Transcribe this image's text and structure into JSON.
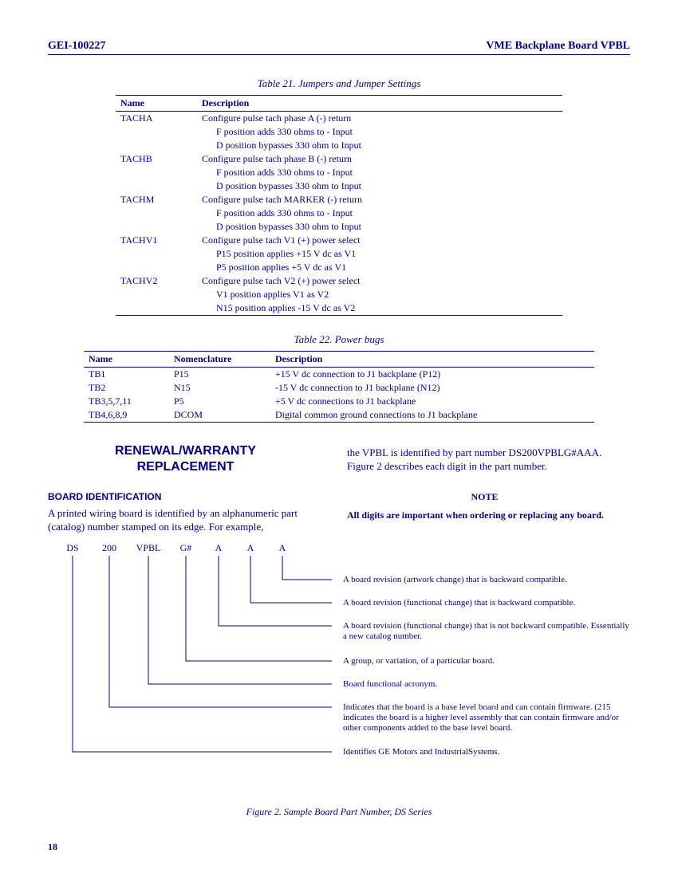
{
  "header": {
    "left": "GEI-100227",
    "right": "VME Backplane Board VPBL"
  },
  "table21": {
    "caption": "Table 21. Jumpers and Jumper Settings",
    "cols": [
      "Name",
      "Description"
    ],
    "rows": [
      {
        "name": "TACHA",
        "lines": [
          "Configure pulse tach phase A (-) return",
          "F position adds 330 ohms to - Input",
          "D position bypasses 330 ohm to Input"
        ]
      },
      {
        "name": "TACHB",
        "lines": [
          "Configure pulse tach phase B (-) return",
          "F position adds 330 ohms to - Input",
          "D position bypasses 330 ohm to Input"
        ]
      },
      {
        "name": "TACHM",
        "lines": [
          "Configure pulse tach MARKER (-) return",
          "F position adds 330 ohms to - Input",
          "D position bypasses 330 ohm to Input"
        ]
      },
      {
        "name": "TACHV1",
        "lines": [
          "Configure pulse tach V1 (+) power select",
          "P15 position applies +15 V dc as V1",
          "P5 position applies +5 V dc as V1"
        ]
      },
      {
        "name": "TACHV2",
        "lines": [
          "Configure pulse tach V2 (+) power select",
          "V1 position applies V1 as V2",
          "N15 position applies -15 V dc as V2"
        ]
      }
    ]
  },
  "table22": {
    "caption": "Table 22. Power bugs",
    "cols": [
      "Name",
      "Nomenclature",
      "Description"
    ],
    "rows": [
      [
        "TB1",
        "P15",
        "+15 V dc connection to J1 backplane (P12)"
      ],
      [
        "TB2",
        "N15",
        "-15 V dc connection to J1 backplane (N12)"
      ],
      [
        "TB3,5,7,11",
        "P5",
        "+5 V dc connections to J1 backplane"
      ],
      [
        "TB4,6,8,9",
        "DCOM",
        "Digital common ground connections to J1 backplane"
      ]
    ]
  },
  "section": {
    "h1a": "RENEWAL/WARRANTY",
    "h1b": "REPLACEMENT",
    "h2": "BOARD IDENTIFICATION",
    "p_left": "A printed wiring board is identified by an alphanumeric part (catalog) number stamped on its edge. For example,",
    "p_right": "the VPBL is identified by part number DS200VPBLG#AAA. Figure 2 describes each digit in the part number.",
    "notehdr": "NOTE",
    "notetxt": "All digits are important when ordering or replacing any board."
  },
  "part": {
    "segments": [
      "DS",
      "200",
      "VPBL",
      "G#",
      "A",
      "A",
      "A"
    ],
    "seg_widths": [
      46,
      46,
      52,
      42,
      40,
      40,
      40
    ],
    "labels": [
      "A board revision (artwork change) that is backward compatible.",
      "A board revision (functional change) that is backward compatible.",
      "A board revision (functional change) that is not backward compatible. Essentially a new catalog number.",
      "A group, or variation, of a particular board.",
      "Board functional acronym.",
      "Indicates that the board is a base level board and can contain firmware. (215 indicates the board is a higher level assembly that can contain firmware and/or other components added to the base level board.",
      "Identifies GE Motors and IndustrialSystems."
    ],
    "label_tops": [
      24,
      53,
      82,
      126,
      155,
      184,
      240
    ],
    "line_color": "#000088",
    "figcap": "Figure 2. Sample Board Part Number, DS Series"
  },
  "page_number": "18"
}
